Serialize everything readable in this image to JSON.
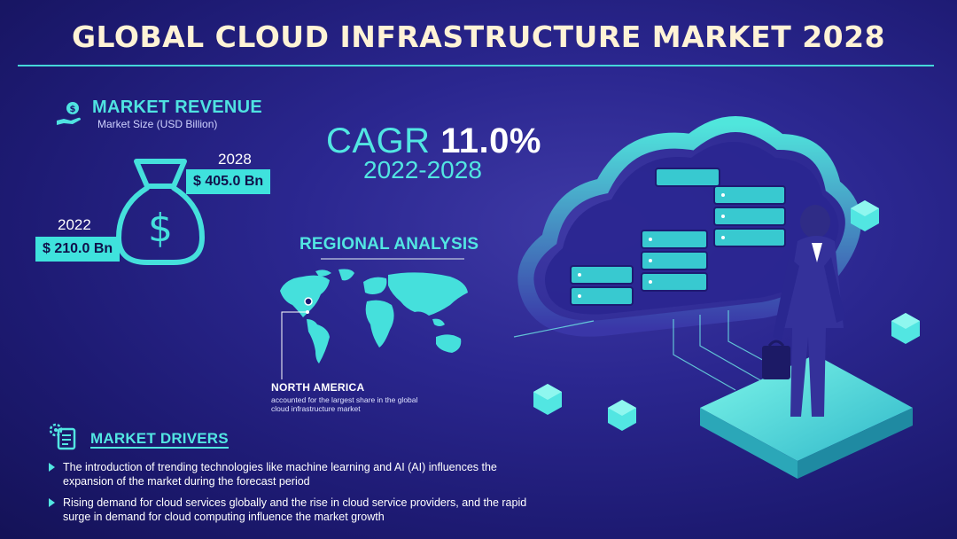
{
  "title": "GLOBAL CLOUD INFRASTRUCTURE MARKET 2028",
  "revenue": {
    "heading": "MARKET REVENUE",
    "subheading": "Market Size (USD Billion)",
    "year_2028": "2028",
    "value_2028": "$ 405.0 Bn",
    "year_2022": "2022",
    "value_2022": "$ 210.0 Bn"
  },
  "cagr": {
    "label": "CAGR",
    "value": "11.0%",
    "period": "2022-2028"
  },
  "regional": {
    "heading": "REGIONAL ANALYSIS",
    "region": "NORTH AMERICA",
    "description": "accounted for the largest share in the global cloud infrastructure market"
  },
  "drivers": {
    "heading": "MARKET DRIVERS",
    "items": [
      "The introduction of trending technologies like machine learning and AI (AI) influences the expansion of the market during the forecast period",
      "Rising demand for cloud services globally and the rise in cloud service providers, and the rapid surge in demand for cloud computing influence the market growth"
    ]
  },
  "colors": {
    "accent": "#52e6e2",
    "title": "#fff3d6",
    "background": "#2b2790"
  },
  "icons": {
    "revenue": "money-hand-icon",
    "bag": "money-bag-icon",
    "drivers": "gear-document-icon"
  }
}
